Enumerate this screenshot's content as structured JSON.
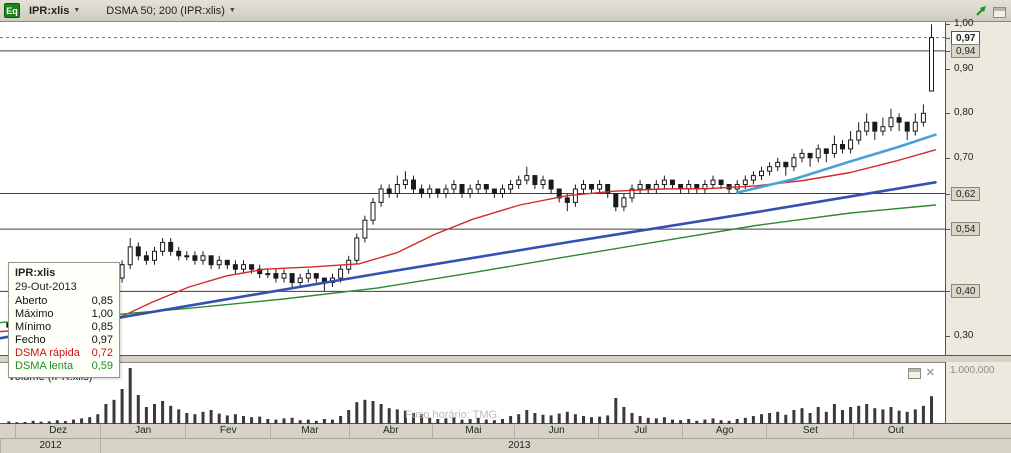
{
  "toolbar": {
    "eq_badge": "Eq",
    "symbol": "IPR:xlis",
    "indicator": "DSMA 50; 200 (IPR:xlis)"
  },
  "icons": {
    "caret_down": "▼",
    "close": "✕",
    "trend_arrow": "diagonal-up-green-arrow",
    "panel_restore": "window-panel"
  },
  "tooltip": {
    "title": "IPR:xlis",
    "date": "29-Out-2013",
    "rows": [
      {
        "label": "Aberto",
        "value": "0,85",
        "color": "#111111"
      },
      {
        "label": "Máximo",
        "value": "1,00",
        "color": "#111111"
      },
      {
        "label": "Mínimo",
        "value": "0,85",
        "color": "#111111"
      },
      {
        "label": "Fecho",
        "value": "0,97",
        "color": "#111111"
      },
      {
        "label": "DSMA rápida",
        "value": "0,72",
        "color": "#cc1111"
      },
      {
        "label": "DSMA lenta",
        "value": "0,59",
        "color": "#1e8e1e"
      }
    ]
  },
  "volume_pane": {
    "title": "Volume (IPR:xlis)",
    "scale_label": "1.000.000",
    "watermark": "Fuso horário: TMG"
  },
  "price_axis": {
    "ticks": [
      {
        "label": "1,00",
        "value": 1.0,
        "boxed": false
      },
      {
        "label": "0,97",
        "value": 0.97,
        "boxed": true,
        "current": true
      },
      {
        "label": "0,94",
        "value": 0.94,
        "boxed": true
      },
      {
        "label": "0,90",
        "value": 0.9,
        "boxed": false
      },
      {
        "label": "0,80",
        "value": 0.8,
        "boxed": false
      },
      {
        "label": "0,70",
        "value": 0.7,
        "boxed": false
      },
      {
        "label": "0,62",
        "value": 0.62,
        "boxed": true
      },
      {
        "label": "0,54",
        "value": 0.54,
        "boxed": true
      },
      {
        "label": "0,40",
        "value": 0.4,
        "boxed": true
      },
      {
        "label": "0,30",
        "value": 0.3,
        "boxed": false
      }
    ]
  },
  "time_axis": {
    "months": [
      {
        "label": "Dez",
        "start": 0.016,
        "end": 0.106
      },
      {
        "label": "Jan",
        "start": 0.106,
        "end": 0.196
      },
      {
        "label": "Fev",
        "start": 0.196,
        "end": 0.286
      },
      {
        "label": "Mar",
        "start": 0.286,
        "end": 0.369
      },
      {
        "label": "Abr",
        "start": 0.369,
        "end": 0.457
      },
      {
        "label": "Mai",
        "start": 0.457,
        "end": 0.544
      },
      {
        "label": "Jun",
        "start": 0.544,
        "end": 0.633
      },
      {
        "label": "Jul",
        "start": 0.633,
        "end": 0.722
      },
      {
        "label": "Ago",
        "start": 0.722,
        "end": 0.811
      },
      {
        "label": "Set",
        "start": 0.811,
        "end": 0.903
      },
      {
        "label": "Out",
        "start": 0.903,
        "end": 0.992
      }
    ],
    "years": [
      {
        "label": "2012",
        "start": 0.0,
        "end": 0.106
      },
      {
        "label": "2013",
        "start": 0.106,
        "end": 0.992
      }
    ]
  },
  "chart_data": {
    "type": "candlestick",
    "symbol": "IPR:xlis",
    "title": "IPR:xlis — DSMA 50; 200",
    "ylim": [
      0.255,
      1.005
    ],
    "levels_solid": [
      0.94,
      0.62,
      0.54,
      0.4
    ],
    "levels_dashed": [
      0.97
    ],
    "level_color": "#3c3c3c",
    "last_price_line_color": "#c05050",
    "candle_color": "#1a1a1a",
    "x_months": [
      "Dez",
      "Jan",
      "Fev",
      "Mar",
      "Abr",
      "Mai",
      "Jun",
      "Jul",
      "Ago",
      "Set",
      "Out"
    ],
    "last_bar": {
      "date": "29-Out-2013",
      "open": 0.85,
      "high": 1.0,
      "low": 0.85,
      "close": 0.97,
      "dsma_rapida": 0.72,
      "dsma_lenta": 0.59
    },
    "candles": [
      [
        0.33,
        0.36,
        0.27,
        0.32,
        60000
      ],
      [
        0.32,
        0.33,
        0.3,
        0.31,
        45000
      ],
      [
        0.31,
        0.33,
        0.3,
        0.32,
        50000
      ],
      [
        0.32,
        0.34,
        0.31,
        0.33,
        70000
      ],
      [
        0.33,
        0.34,
        0.31,
        0.32,
        55000
      ],
      [
        0.32,
        0.34,
        0.31,
        0.33,
        60000
      ],
      [
        0.33,
        0.35,
        0.32,
        0.34,
        80000
      ],
      [
        0.34,
        0.35,
        0.32,
        0.33,
        65000
      ],
      [
        0.33,
        0.35,
        0.32,
        0.34,
        90000
      ],
      [
        0.34,
        0.36,
        0.33,
        0.35,
        110000
      ],
      [
        0.35,
        0.37,
        0.34,
        0.36,
        130000
      ],
      [
        0.36,
        0.38,
        0.35,
        0.37,
        180000
      ],
      [
        0.37,
        0.41,
        0.36,
        0.4,
        350000
      ],
      [
        0.4,
        0.44,
        0.39,
        0.43,
        420000
      ],
      [
        0.43,
        0.47,
        0.42,
        0.46,
        600000
      ],
      [
        0.46,
        0.52,
        0.45,
        0.5,
        950000
      ],
      [
        0.5,
        0.51,
        0.47,
        0.48,
        500000
      ],
      [
        0.48,
        0.49,
        0.46,
        0.47,
        300000
      ],
      [
        0.47,
        0.5,
        0.46,
        0.49,
        350000
      ],
      [
        0.49,
        0.52,
        0.48,
        0.51,
        400000
      ],
      [
        0.51,
        0.52,
        0.48,
        0.49,
        320000
      ],
      [
        0.49,
        0.5,
        0.47,
        0.48,
        260000
      ],
      [
        0.48,
        0.49,
        0.47,
        0.48,
        200000
      ],
      [
        0.48,
        0.49,
        0.46,
        0.47,
        180000
      ],
      [
        0.47,
        0.49,
        0.46,
        0.48,
        220000
      ],
      [
        0.48,
        0.48,
        0.45,
        0.46,
        250000
      ],
      [
        0.46,
        0.48,
        0.45,
        0.47,
        190000
      ],
      [
        0.47,
        0.47,
        0.45,
        0.46,
        160000
      ],
      [
        0.46,
        0.47,
        0.44,
        0.45,
        180000
      ],
      [
        0.45,
        0.47,
        0.44,
        0.46,
        150000
      ],
      [
        0.46,
        0.46,
        0.44,
        0.45,
        130000
      ],
      [
        0.45,
        0.46,
        0.43,
        0.44,
        140000
      ],
      [
        0.44,
        0.45,
        0.43,
        0.44,
        100000
      ],
      [
        0.44,
        0.45,
        0.42,
        0.43,
        90000
      ],
      [
        0.43,
        0.45,
        0.42,
        0.44,
        110000
      ],
      [
        0.44,
        0.44,
        0.41,
        0.42,
        120000
      ],
      [
        0.42,
        0.44,
        0.41,
        0.43,
        80000
      ],
      [
        0.43,
        0.45,
        0.42,
        0.44,
        90000
      ],
      [
        0.44,
        0.44,
        0.42,
        0.43,
        70000
      ],
      [
        0.43,
        0.43,
        0.4,
        0.42,
        100000
      ],
      [
        0.42,
        0.44,
        0.41,
        0.43,
        90000
      ],
      [
        0.43,
        0.46,
        0.42,
        0.45,
        150000
      ],
      [
        0.45,
        0.48,
        0.44,
        0.47,
        250000
      ],
      [
        0.47,
        0.53,
        0.46,
        0.52,
        380000
      ],
      [
        0.52,
        0.57,
        0.51,
        0.56,
        420000
      ],
      [
        0.56,
        0.61,
        0.55,
        0.6,
        400000
      ],
      [
        0.6,
        0.64,
        0.59,
        0.63,
        350000
      ],
      [
        0.63,
        0.64,
        0.61,
        0.62,
        280000
      ],
      [
        0.62,
        0.66,
        0.61,
        0.64,
        260000
      ],
      [
        0.64,
        0.67,
        0.63,
        0.65,
        240000
      ],
      [
        0.65,
        0.66,
        0.62,
        0.63,
        200000
      ],
      [
        0.63,
        0.64,
        0.61,
        0.62,
        180000
      ],
      [
        0.62,
        0.64,
        0.61,
        0.63,
        120000
      ],
      [
        0.63,
        0.63,
        0.61,
        0.62,
        100000
      ],
      [
        0.62,
        0.64,
        0.61,
        0.63,
        110000
      ],
      [
        0.63,
        0.65,
        0.62,
        0.64,
        130000
      ],
      [
        0.64,
        0.64,
        0.61,
        0.62,
        90000
      ],
      [
        0.62,
        0.64,
        0.61,
        0.63,
        100000
      ],
      [
        0.63,
        0.65,
        0.62,
        0.64,
        120000
      ],
      [
        0.64,
        0.64,
        0.62,
        0.63,
        90000
      ],
      [
        0.63,
        0.63,
        0.61,
        0.62,
        80000
      ],
      [
        0.62,
        0.64,
        0.61,
        0.63,
        100000
      ],
      [
        0.63,
        0.65,
        0.62,
        0.64,
        150000
      ],
      [
        0.64,
        0.66,
        0.63,
        0.65,
        180000
      ],
      [
        0.65,
        0.68,
        0.64,
        0.66,
        250000
      ],
      [
        0.66,
        0.66,
        0.63,
        0.64,
        200000
      ],
      [
        0.64,
        0.66,
        0.63,
        0.65,
        170000
      ],
      [
        0.65,
        0.65,
        0.62,
        0.63,
        160000
      ],
      [
        0.63,
        0.63,
        0.6,
        0.61,
        190000
      ],
      [
        0.61,
        0.62,
        0.58,
        0.6,
        220000
      ],
      [
        0.6,
        0.64,
        0.59,
        0.63,
        180000
      ],
      [
        0.63,
        0.65,
        0.62,
        0.64,
        150000
      ],
      [
        0.64,
        0.64,
        0.62,
        0.63,
        130000
      ],
      [
        0.63,
        0.65,
        0.62,
        0.64,
        140000
      ],
      [
        0.64,
        0.64,
        0.61,
        0.62,
        160000
      ],
      [
        0.62,
        0.62,
        0.58,
        0.59,
        450000
      ],
      [
        0.59,
        0.62,
        0.58,
        0.61,
        300000
      ],
      [
        0.61,
        0.64,
        0.6,
        0.63,
        200000
      ],
      [
        0.63,
        0.65,
        0.62,
        0.64,
        150000
      ],
      [
        0.64,
        0.64,
        0.62,
        0.63,
        120000
      ],
      [
        0.63,
        0.65,
        0.62,
        0.64,
        110000
      ],
      [
        0.64,
        0.66,
        0.63,
        0.65,
        130000
      ],
      [
        0.65,
        0.65,
        0.63,
        0.64,
        90000
      ],
      [
        0.64,
        0.64,
        0.62,
        0.63,
        80000
      ],
      [
        0.63,
        0.65,
        0.62,
        0.64,
        100000
      ],
      [
        0.64,
        0.64,
        0.62,
        0.63,
        70000
      ],
      [
        0.63,
        0.65,
        0.62,
        0.64,
        90000
      ],
      [
        0.64,
        0.66,
        0.63,
        0.65,
        110000
      ],
      [
        0.65,
        0.65,
        0.63,
        0.64,
        80000
      ],
      [
        0.64,
        0.64,
        0.62,
        0.63,
        70000
      ],
      [
        0.63,
        0.65,
        0.62,
        0.64,
        100000
      ],
      [
        0.64,
        0.66,
        0.63,
        0.65,
        120000
      ],
      [
        0.65,
        0.67,
        0.64,
        0.66,
        150000
      ],
      [
        0.66,
        0.68,
        0.65,
        0.67,
        180000
      ],
      [
        0.67,
        0.69,
        0.66,
        0.68,
        200000
      ],
      [
        0.68,
        0.7,
        0.67,
        0.69,
        220000
      ],
      [
        0.69,
        0.69,
        0.66,
        0.68,
        170000
      ],
      [
        0.68,
        0.71,
        0.67,
        0.7,
        250000
      ],
      [
        0.7,
        0.72,
        0.69,
        0.71,
        280000
      ],
      [
        0.71,
        0.71,
        0.68,
        0.7,
        200000
      ],
      [
        0.7,
        0.73,
        0.69,
        0.72,
        300000
      ],
      [
        0.72,
        0.72,
        0.69,
        0.71,
        220000
      ],
      [
        0.71,
        0.75,
        0.7,
        0.73,
        350000
      ],
      [
        0.73,
        0.74,
        0.71,
        0.72,
        250000
      ],
      [
        0.72,
        0.76,
        0.71,
        0.74,
        300000
      ],
      [
        0.74,
        0.78,
        0.73,
        0.76,
        320000
      ],
      [
        0.76,
        0.8,
        0.75,
        0.78,
        350000
      ],
      [
        0.78,
        0.78,
        0.74,
        0.76,
        280000
      ],
      [
        0.76,
        0.79,
        0.75,
        0.77,
        260000
      ],
      [
        0.77,
        0.81,
        0.76,
        0.79,
        300000
      ],
      [
        0.79,
        0.8,
        0.76,
        0.78,
        240000
      ],
      [
        0.78,
        0.78,
        0.74,
        0.76,
        220000
      ],
      [
        0.76,
        0.8,
        0.75,
        0.78,
        260000
      ],
      [
        0.78,
        0.82,
        0.77,
        0.8,
        320000
      ],
      [
        0.85,
        1.0,
        0.85,
        0.97,
        480000
      ]
    ],
    "overlays": [
      {
        "name": "DSMA-rapida-50",
        "color": "#d42a2a",
        "width": 1.4,
        "points": [
          [
            0.0,
            0.31
          ],
          [
            0.05,
            0.315
          ],
          [
            0.1,
            0.325
          ],
          [
            0.13,
            0.345
          ],
          [
            0.16,
            0.375
          ],
          [
            0.2,
            0.41
          ],
          [
            0.24,
            0.435
          ],
          [
            0.28,
            0.45
          ],
          [
            0.33,
            0.455
          ],
          [
            0.38,
            0.462
          ],
          [
            0.42,
            0.487
          ],
          [
            0.46,
            0.528
          ],
          [
            0.5,
            0.562
          ],
          [
            0.55,
            0.594
          ],
          [
            0.6,
            0.615
          ],
          [
            0.65,
            0.625
          ],
          [
            0.7,
            0.63
          ],
          [
            0.75,
            0.631
          ],
          [
            0.8,
            0.637
          ],
          [
            0.85,
            0.649
          ],
          [
            0.9,
            0.667
          ],
          [
            0.95,
            0.694
          ],
          [
            0.99,
            0.718
          ]
        ]
      },
      {
        "name": "DSMA-lenta-200",
        "color": "#2e8b2e",
        "width": 1.4,
        "points": [
          [
            0.0,
            0.33
          ],
          [
            0.1,
            0.344
          ],
          [
            0.2,
            0.362
          ],
          [
            0.3,
            0.383
          ],
          [
            0.4,
            0.408
          ],
          [
            0.5,
            0.442
          ],
          [
            0.6,
            0.478
          ],
          [
            0.7,
            0.513
          ],
          [
            0.8,
            0.548
          ],
          [
            0.9,
            0.576
          ],
          [
            0.99,
            0.594
          ]
        ]
      },
      {
        "name": "linha-tendencia",
        "color": "#3450b4",
        "width": 2.6,
        "points": [
          [
            0.0,
            0.295
          ],
          [
            0.2,
            0.368
          ],
          [
            0.4,
            0.44
          ],
          [
            0.6,
            0.51
          ],
          [
            0.8,
            0.578
          ],
          [
            0.99,
            0.645
          ]
        ]
      },
      {
        "name": "media-azul-clara",
        "color": "#4aa0d8",
        "width": 2.6,
        "points": [
          [
            0.78,
            0.622
          ],
          [
            0.84,
            0.652
          ],
          [
            0.9,
            0.692
          ],
          [
            0.95,
            0.724
          ],
          [
            0.99,
            0.752
          ]
        ]
      }
    ],
    "volume": {
      "max": 1000000,
      "color": "#3a3a3a",
      "scale_label": "1.000.000"
    }
  }
}
